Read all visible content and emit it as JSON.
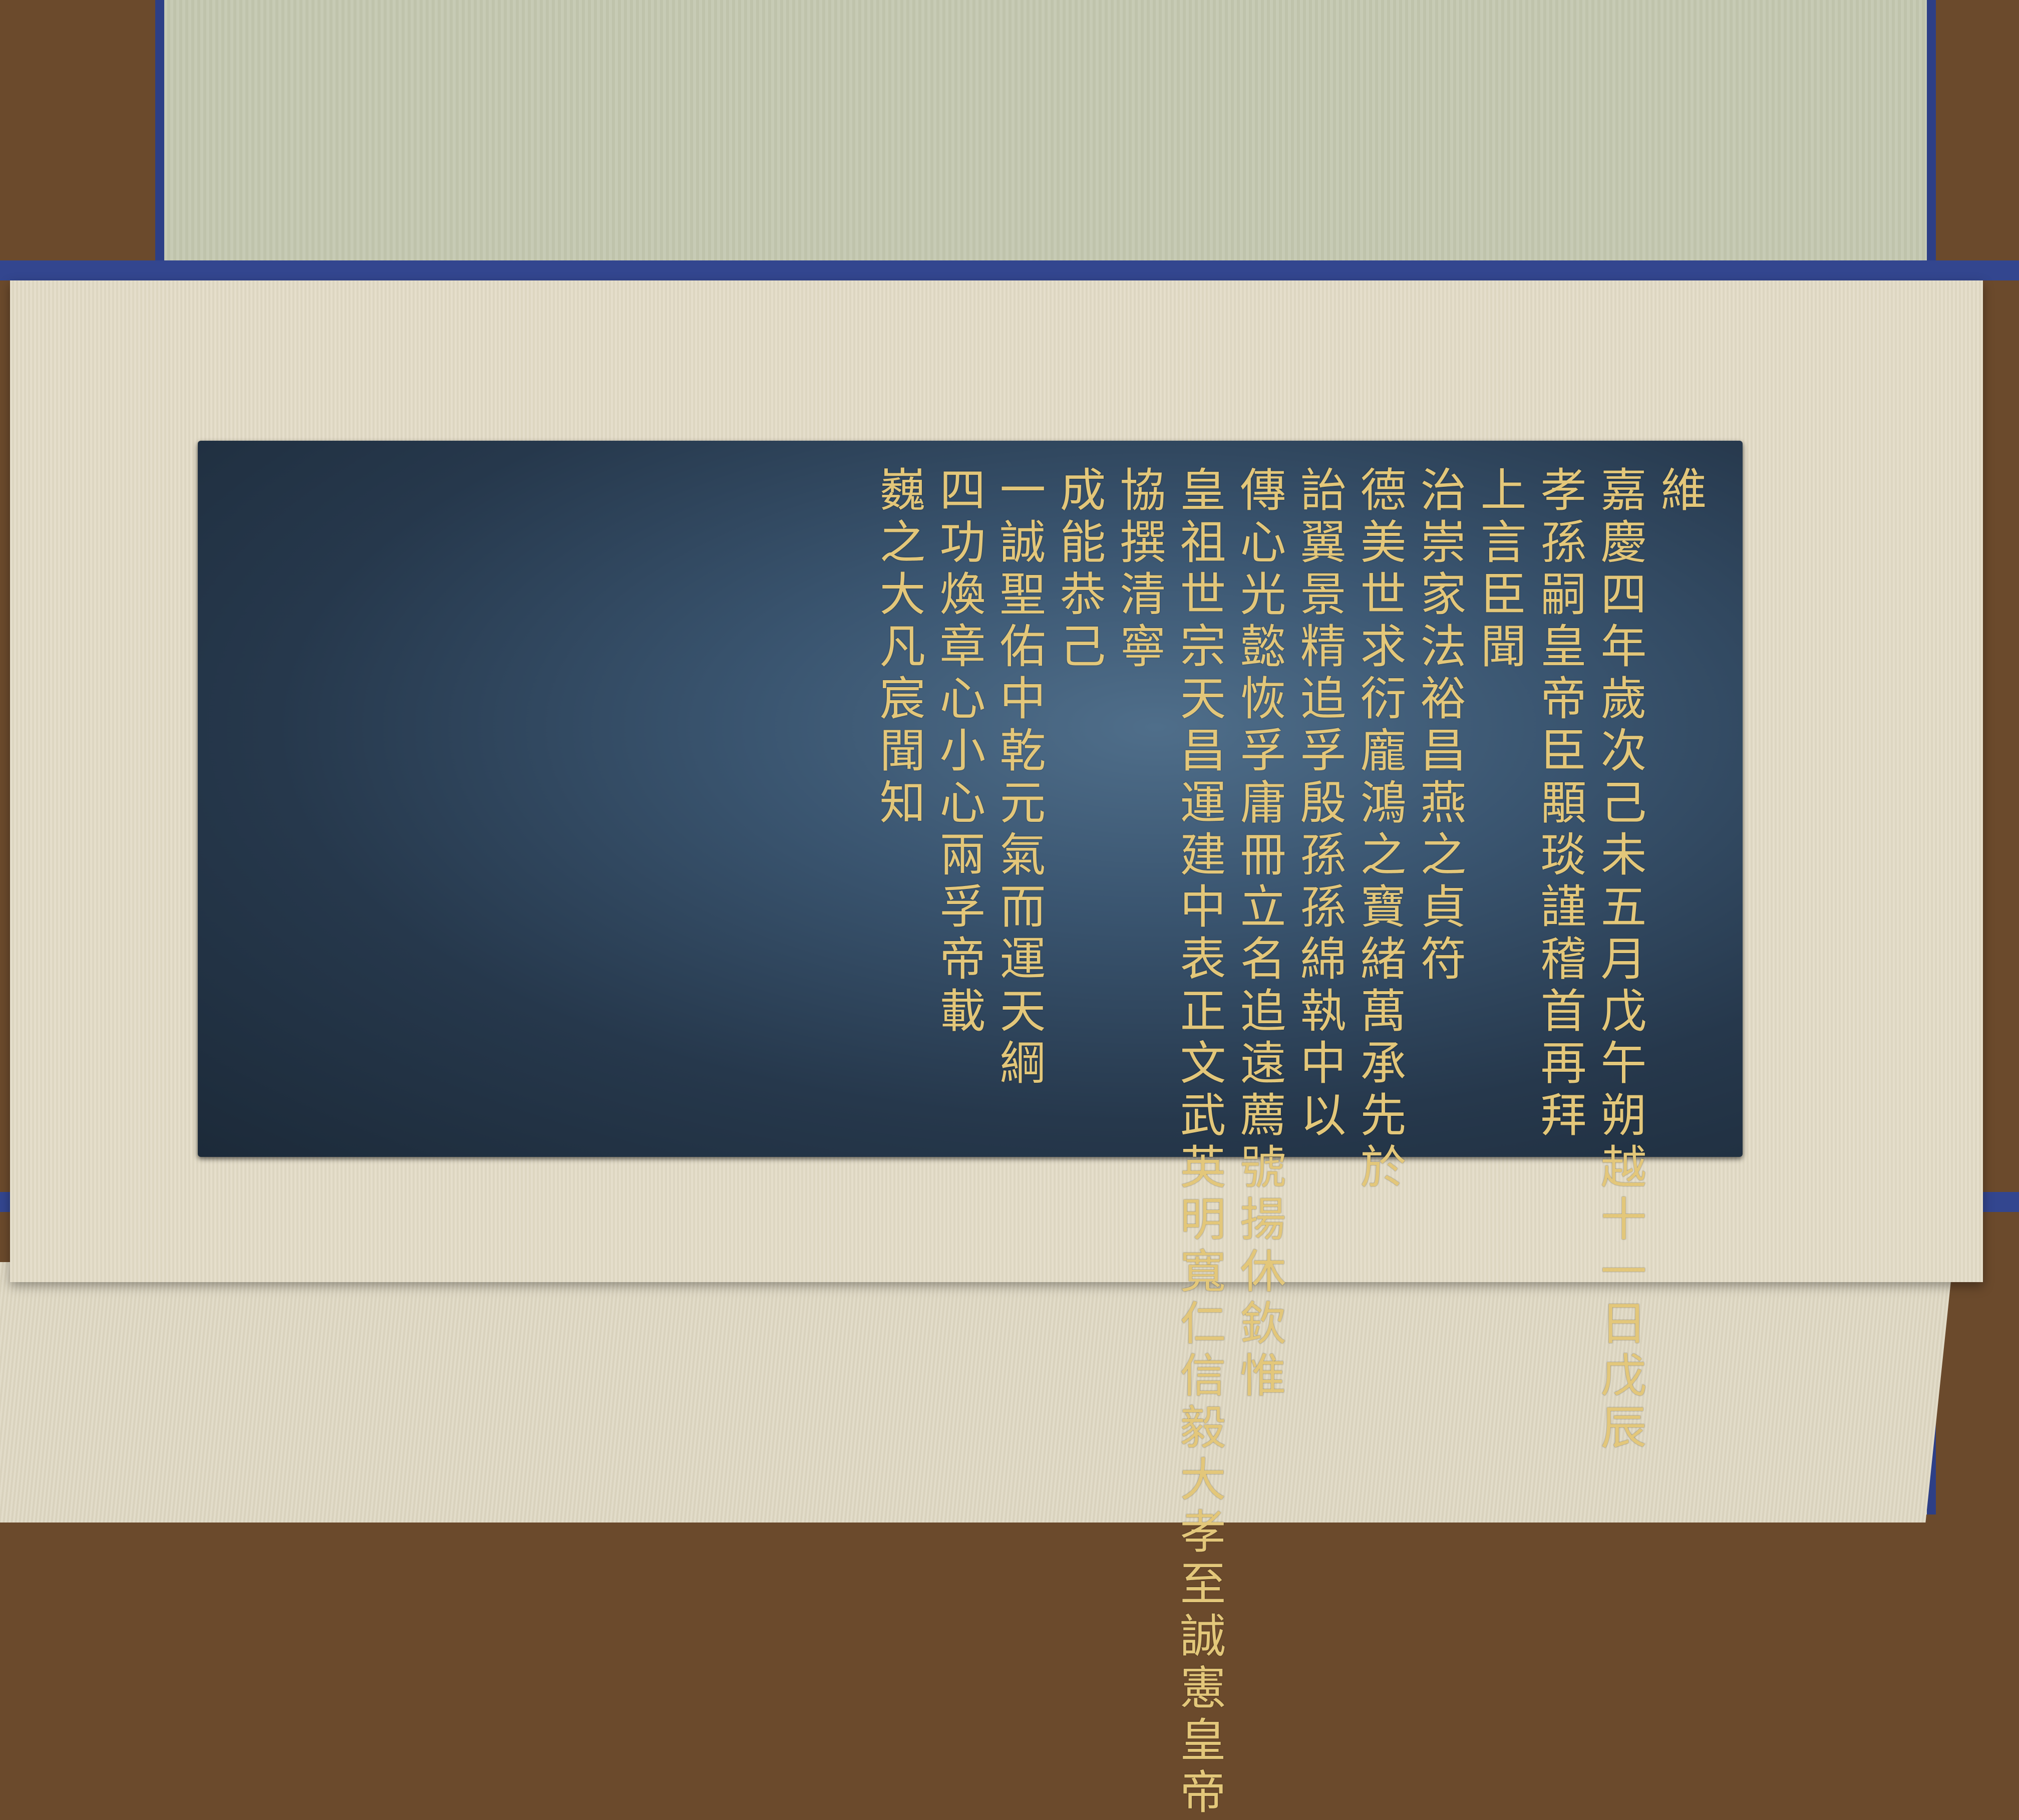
{
  "inscription": {
    "columns": [
      "維",
      "嘉慶四年歲次己未五月戊午朔越十一日戊辰",
      "孝孫嗣皇帝臣顒琰謹稽首再拜",
      "上言臣聞",
      "治崇家法裕昌燕之貞符",
      "德美世求衍龐鴻之寶緒萬承先於",
      "詒翼景精追孚殷孫孫綿執中以",
      "傳心光懿恢孚庸冊立名追遠薦號揚休欽惟",
      "皇祖世宗天昌運建中表正文武英明寬仁信毅大孝至誠憲皇帝",
      "協撰清寧",
      "成能恭己",
      "一誠聖佑中乾元氣而運天綱",
      "四功煥章心小心兩孚帝載",
      "巍之大凡宸聞知"
    ]
  }
}
